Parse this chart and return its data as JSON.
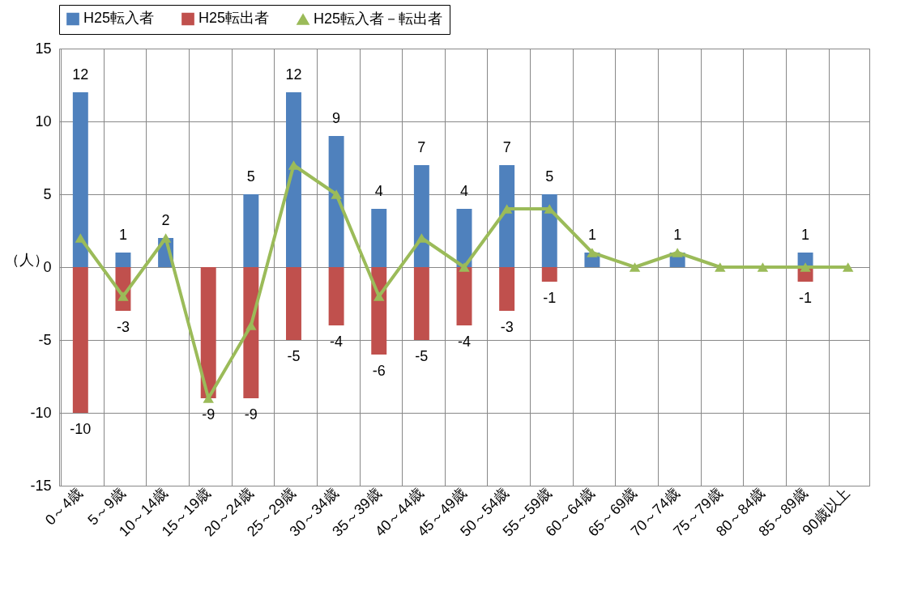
{
  "chart_data": {
    "type": "bar",
    "ylabel": "（人）",
    "categories": [
      "0～4歳",
      "5～9歳",
      "10～14歳",
      "15～19歳",
      "20～24歳",
      "25～29歳",
      "30～34歳",
      "35～39歳",
      "40～44歳",
      "45～49歳",
      "50～54歳",
      "55～59歳",
      "60～64歳",
      "65～69歳",
      "70～74歳",
      "75～79歳",
      "80～84歳",
      "85～89歳",
      "90歳以上"
    ],
    "series": [
      {
        "name": "H25転入者",
        "color": "#4f81bd",
        "values": [
          12,
          1,
          2,
          0,
          5,
          12,
          9,
          4,
          7,
          4,
          7,
          5,
          1,
          0,
          1,
          0,
          0,
          1,
          0
        ],
        "value_labels": [
          "12",
          "1",
          "2",
          null,
          "5",
          "12",
          "9",
          "4",
          "7",
          "4",
          "7",
          "5",
          "1",
          null,
          "1",
          null,
          null,
          "1",
          null
        ]
      },
      {
        "name": "H25転出者",
        "color": "#c0504d",
        "values": [
          -10,
          -3,
          0,
          -9,
          -9,
          -5,
          -4,
          -6,
          -5,
          -4,
          -3,
          -1,
          0,
          0,
          0,
          0,
          0,
          -1,
          0
        ],
        "value_labels": [
          "-10",
          "-3",
          null,
          "-9",
          "-9",
          "-5",
          "-4",
          "-6",
          "-5",
          "-4",
          "-3",
          "-1",
          null,
          null,
          null,
          null,
          null,
          "-1",
          null
        ]
      },
      {
        "name": "H25転入者－転出者",
        "type": "line",
        "color": "#9bbb59",
        "marker": "triangle",
        "values": [
          2,
          -2,
          2,
          -9,
          -4,
          7,
          5,
          -2,
          2,
          0,
          4,
          4,
          1,
          0,
          1,
          0,
          0,
          0,
          0
        ]
      }
    ],
    "stacked": true,
    "ylim": [
      -15,
      15
    ],
    "yticks": [
      -15,
      -10,
      -5,
      0,
      5,
      10,
      15
    ],
    "grid": true,
    "legend": "top"
  }
}
